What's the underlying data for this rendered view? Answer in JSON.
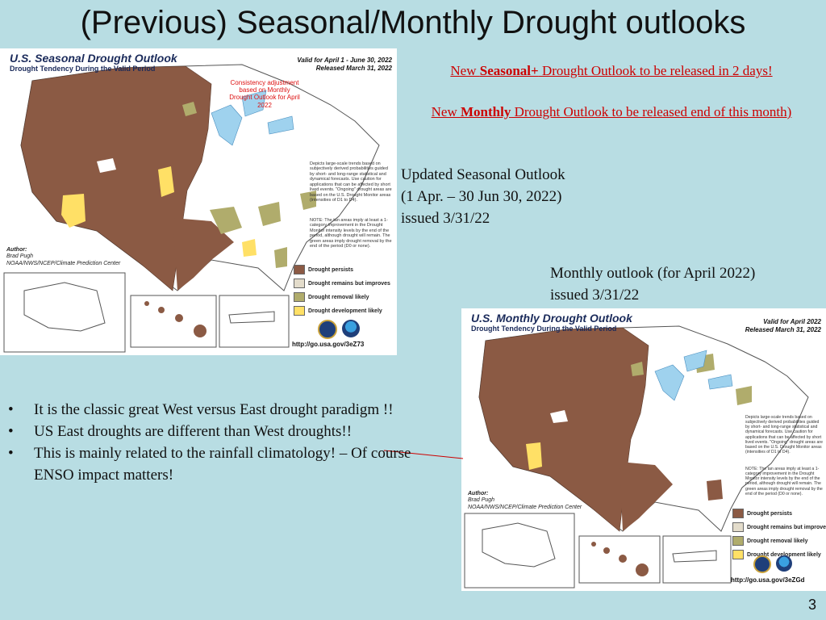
{
  "slide": {
    "title": "(Previous) Seasonal/Monthly Drought outlooks",
    "page_number": "3"
  },
  "seasonal_map": {
    "title": "U.S. Seasonal Drought Outlook",
    "subtitle": "Drought Tendency During the Valid Period",
    "valid": "Valid for April 1 - June 30, 2022",
    "released": "Released March 31, 2022",
    "consistency_note": "Consistency adjustment based on Monthly Drought Outlook for April 2022",
    "author_label": "Author:",
    "author_name": "Brad Pugh",
    "author_org": "NOAA/NWS/NCEP/Climate Prediction Center",
    "depicts_note": "Depicts large-scale trends based on subjectively derived probabilities guided by short- and long-range statistical and dynamical forecasts. Use caution for applications that can be affected by short lived events. \"Ongoing\" drought areas are based on the U.S. Drought Monitor areas (intensities of D1 to D4).",
    "tan_note": "NOTE: The tan areas imply at least a 1-category improvement in the Drought Monitor intensity levels by the end of the period, although drought will remain. The green areas imply drought removal by the end of the period (D0 or none).",
    "url": "http://go.usa.gov/3eZ73"
  },
  "monthly_map": {
    "title": "U.S. Monthly Drought Outlook",
    "subtitle": "Drought Tendency During the Valid Period",
    "valid": "Valid for April 2022",
    "released": "Released March 31, 2022",
    "author_label": "Author:",
    "author_name": "Brad Pugh",
    "author_org": "NOAA/NWS/NCEP/Climate Prediction Center",
    "depicts_note": "Depicts large-scale trends based on subjectively derived probabilities guided by short- and long-range statistical and dynamical forecasts. Use caution for applications that can be affected by short lived events. \"Ongoing\" drought areas are based on the U.S. Drought Monitor areas (intensities of D1 to D4).",
    "tan_note": "NOTE: The tan areas imply at least a 1-category improvement in the Drought Monitor intensity levels by the end of the period, although drought will remain. The green areas imply drought removal by the end of the period (D0 or none).",
    "url": "http://go.usa.gov/3eZGd"
  },
  "legend": [
    {
      "label": "Drought persists",
      "color": "#8b5a44"
    },
    {
      "label": "Drought remains but improves",
      "color": "#e3dccb"
    },
    {
      "label": "Drought removal likely",
      "color": "#b0ac6c"
    },
    {
      "label": "Drought development likely",
      "color": "#ffe066"
    }
  ],
  "announcements": {
    "seasonal_prefix": "New ",
    "seasonal_bold": "Seasonal+",
    "seasonal_suffix": " Drought Outlook to be released in 2 days!",
    "monthly_prefix": "New ",
    "monthly_bold": "Monthly",
    "monthly_suffix": " Drought Outlook to be released end of this month)"
  },
  "seasonal_info": {
    "line1": "Updated Seasonal Outlook",
    "line2": "(1 Apr. – 30 Jun 30,  2022)",
    "line3": "issued  3/31/22"
  },
  "monthly_info": {
    "line1": "Monthly outlook (for April 2022)",
    "line2": "issued 3/31/22"
  },
  "bullets": [
    "It is the classic great West versus East drought paradigm !!",
    "US East droughts are different than West droughts!!",
    "This is mainly related to the rainfall climatology! – Of course ENSO impact matters!"
  ],
  "colors": {
    "background": "#b8dde3",
    "announcement_red": "#cc0000",
    "water": "#9fd2ee"
  }
}
